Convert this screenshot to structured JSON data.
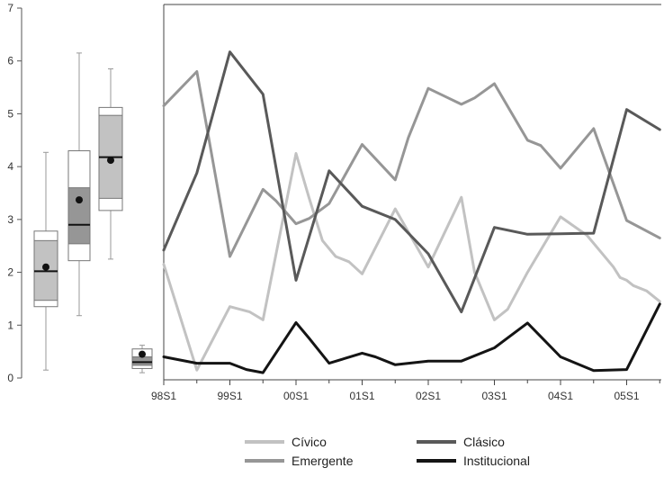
{
  "chart_data": {
    "type": "line",
    "ylim": [
      0,
      7
    ],
    "yticks": [
      "0",
      "1",
      "2",
      "3",
      "4",
      "5",
      "6",
      "7"
    ],
    "xticks": [
      "98S1",
      "99S1",
      "00S1",
      "01S1",
      "02S1",
      "03S1",
      "04S1",
      "05S1"
    ],
    "x_range": [
      0,
      7.5
    ],
    "series": [
      {
        "name": "Cívico",
        "color": "#c2c2c2",
        "x": [
          0,
          0.5,
          1,
          1.3,
          1.5,
          2,
          2.2,
          2.4,
          2.6,
          2.8,
          3,
          3.5,
          4,
          4.5,
          4.7,
          5,
          5.2,
          5.5,
          6,
          6.4,
          6.6,
          6.8,
          6.9,
          7,
          7.1,
          7.3,
          7.5
        ],
        "values": [
          2.15,
          0.15,
          1.35,
          1.25,
          1.1,
          4.25,
          3.4,
          2.6,
          2.3,
          2.2,
          1.97,
          3.2,
          2.1,
          3.42,
          2.0,
          1.1,
          1.3,
          2.0,
          3.05,
          2.7,
          2.4,
          2.1,
          1.9,
          1.85,
          1.75,
          1.65,
          1.45
        ]
      },
      {
        "name": "Emergente",
        "color": "#969696",
        "x": [
          0,
          0.5,
          1,
          1.5,
          1.7,
          2,
          2.2,
          2.5,
          3,
          3.5,
          3.7,
          4,
          4.3,
          4.5,
          4.7,
          5,
          5.5,
          5.7,
          6,
          6.5,
          7,
          7.5
        ],
        "values": [
          5.15,
          5.8,
          2.3,
          3.57,
          3.35,
          2.92,
          3.02,
          3.3,
          4.42,
          3.75,
          4.55,
          5.48,
          5.3,
          5.18,
          5.3,
          5.57,
          4.5,
          4.4,
          3.97,
          4.72,
          2.98,
          2.65
        ]
      },
      {
        "name": "Clásico",
        "color": "#595959",
        "x": [
          0,
          0.5,
          1,
          1.5,
          2,
          2.5,
          3,
          3.5,
          4,
          4.5,
          5,
          5.5,
          6,
          6.5,
          7,
          7.5
        ],
        "values": [
          2.42,
          3.88,
          6.17,
          5.37,
          1.85,
          3.92,
          3.25,
          3.0,
          2.35,
          1.25,
          2.85,
          2.72,
          2.73,
          2.74,
          5.08,
          4.7
        ]
      },
      {
        "name": "Institucional",
        "color": "#141414",
        "x": [
          0,
          0.5,
          1,
          1.25,
          1.5,
          2,
          2.2,
          2.5,
          3,
          3.2,
          3.5,
          4,
          4.5,
          5,
          5.5,
          6,
          6.5,
          7,
          7.5
        ],
        "values": [
          0.4,
          0.28,
          0.28,
          0.16,
          0.1,
          1.05,
          0.75,
          0.28,
          0.47,
          0.4,
          0.25,
          0.32,
          0.32,
          0.57,
          1.04,
          0.4,
          0.14,
          0.16,
          1.4
        ]
      }
    ],
    "boxplots": [
      {
        "color": "#c2c2c2",
        "min": 0.15,
        "q1": 1.35,
        "median": 2.02,
        "q3": 2.78,
        "max": 4.27,
        "mean": 2.1,
        "lower_band": 1.47,
        "upper_band": 2.6
      },
      {
        "color": "#969696",
        "min": 1.18,
        "q1": 2.22,
        "median": 2.9,
        "q3": 4.3,
        "max": 6.15,
        "mean": 3.37,
        "lower_band": 2.54,
        "upper_band": 3.6
      },
      {
        "color": "#c2c2c2",
        "min": 2.25,
        "q1": 3.17,
        "median": 4.18,
        "q3": 5.12,
        "max": 5.85,
        "mean": 4.12,
        "lower_band": 3.4,
        "upper_band": 4.97
      },
      {
        "color": "#969696",
        "min": 0.1,
        "q1": 0.18,
        "median": 0.3,
        "q3": 0.55,
        "max": 0.62,
        "mean": 0.45,
        "lower_band": 0.24,
        "upper_band": 0.4
      }
    ],
    "legend_placement": "bottom"
  }
}
